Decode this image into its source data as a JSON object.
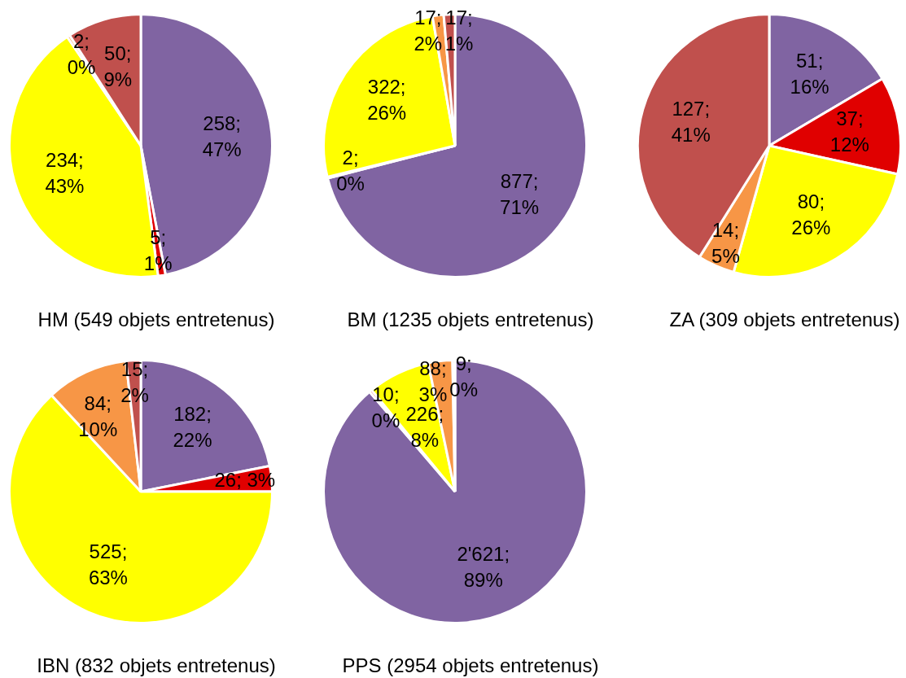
{
  "chart_data": [
    {
      "type": "pie",
      "title": "HM (549 objets entretenus)",
      "categories": [
        null,
        null,
        null,
        null,
        null
      ],
      "values": [
        258,
        5,
        234,
        2,
        50
      ],
      "colors": [
        "#8064a2",
        "#e00000",
        "#ffff00",
        "#f79646",
        "#c0504d"
      ],
      "value_labels": [
        "258;\n47%",
        "5;\n1%",
        "234;\n43%",
        "2;\n0%",
        "50;\n9%"
      ]
    },
    {
      "type": "pie",
      "title": "BM (1235 objets entretenus)",
      "categories": [
        null,
        null,
        null,
        null,
        null
      ],
      "values": [
        877,
        2,
        322,
        17,
        17
      ],
      "colors": [
        "#8064a2",
        "#e00000",
        "#ffff00",
        "#f79646",
        "#c0504d"
      ],
      "value_labels": [
        "877;\n71%",
        "2;\n0%",
        "322;\n26%",
        "17;\n2%",
        "17;\n1%"
      ]
    },
    {
      "type": "pie",
      "title": "ZA (309 objets entretenus)",
      "categories": [
        null,
        null,
        null,
        null,
        null
      ],
      "values": [
        51,
        37,
        80,
        14,
        127
      ],
      "colors": [
        "#8064a2",
        "#e00000",
        "#ffff00",
        "#f79646",
        "#c0504d"
      ],
      "value_labels": [
        "51;\n16%",
        "37;\n12%",
        "80;\n26%",
        "14;\n5%",
        "127;\n41%"
      ]
    },
    {
      "type": "pie",
      "title": "IBN (832 objets entretenus)",
      "categories": [
        null,
        null,
        null,
        null,
        null
      ],
      "values": [
        182,
        26,
        525,
        84,
        15
      ],
      "colors": [
        "#8064a2",
        "#e00000",
        "#ffff00",
        "#f79646",
        "#c0504d"
      ],
      "value_labels": [
        "182;\n22%",
        "26; 3%",
        "525;\n63%",
        "84;\n10%",
        "15;\n2%"
      ]
    },
    {
      "type": "pie",
      "title": "PPS (2954 objets entretenus)",
      "categories": [
        null,
        null,
        null,
        null,
        null
      ],
      "values": [
        2621,
        10,
        226,
        88,
        9
      ],
      "colors": [
        "#8064a2",
        "#e00000",
        "#ffff00",
        "#f79646",
        "#c0504d"
      ],
      "value_labels": [
        "2'621;\n89%",
        "10;\n0%",
        "226;\n8%",
        "88;\n3%",
        "9;\n0%"
      ]
    }
  ]
}
